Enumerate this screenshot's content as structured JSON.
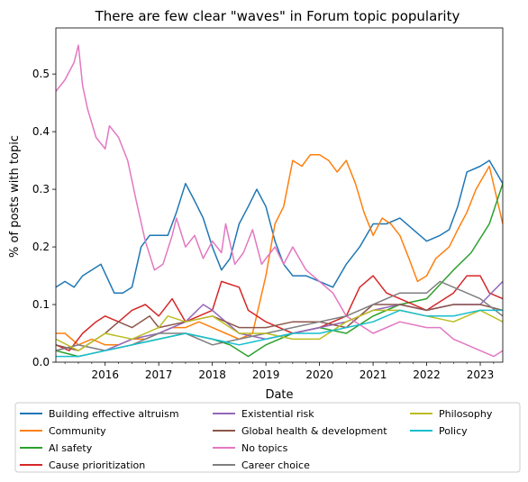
{
  "chart_data": {
    "type": "line",
    "title": "There are few clear \"waves\" in Forum topic popularity",
    "xlabel": "Date",
    "ylabel": "% of posts with topic",
    "xlim": [
      2015.08,
      2023.42
    ],
    "ylim": [
      0.0,
      0.58
    ],
    "xticks": [
      2016,
      2017,
      2018,
      2019,
      2020,
      2021,
      2022,
      2023
    ],
    "yticks": [
      0.0,
      0.1,
      0.2,
      0.3,
      0.4,
      0.5
    ],
    "ytick_labels": [
      "0.0",
      "0.1",
      "0.2",
      "0.3",
      "0.4",
      "0.5"
    ],
    "grid": false,
    "legend_position": "below",
    "legend_columns": 3,
    "series": [
      {
        "name": "Building effective altruism",
        "color": "#1f77b4",
        "points": [
          [
            2015.08,
            0.13
          ],
          [
            2015.25,
            0.14
          ],
          [
            2015.42,
            0.13
          ],
          [
            2015.58,
            0.15
          ],
          [
            2015.75,
            0.16
          ],
          [
            2015.92,
            0.17
          ],
          [
            2016.17,
            0.12
          ],
          [
            2016.33,
            0.12
          ],
          [
            2016.5,
            0.13
          ],
          [
            2016.67,
            0.2
          ],
          [
            2016.83,
            0.22
          ],
          [
            2017.0,
            0.22
          ],
          [
            2017.17,
            0.22
          ],
          [
            2017.33,
            0.26
          ],
          [
            2017.5,
            0.31
          ],
          [
            2017.67,
            0.28
          ],
          [
            2017.83,
            0.25
          ],
          [
            2018.0,
            0.2
          ],
          [
            2018.17,
            0.16
          ],
          [
            2018.33,
            0.18
          ],
          [
            2018.5,
            0.24
          ],
          [
            2018.67,
            0.27
          ],
          [
            2018.83,
            0.3
          ],
          [
            2019.0,
            0.27
          ],
          [
            2019.17,
            0.21
          ],
          [
            2019.33,
            0.17
          ],
          [
            2019.5,
            0.15
          ],
          [
            2019.75,
            0.15
          ],
          [
            2020.0,
            0.14
          ],
          [
            2020.25,
            0.13
          ],
          [
            2020.5,
            0.17
          ],
          [
            2020.75,
            0.2
          ],
          [
            2021.0,
            0.24
          ],
          [
            2021.25,
            0.24
          ],
          [
            2021.5,
            0.25
          ],
          [
            2021.75,
            0.23
          ],
          [
            2022.0,
            0.21
          ],
          [
            2022.25,
            0.22
          ],
          [
            2022.42,
            0.23
          ],
          [
            2022.58,
            0.27
          ],
          [
            2022.75,
            0.33
          ],
          [
            2023.0,
            0.34
          ],
          [
            2023.17,
            0.35
          ],
          [
            2023.42,
            0.31
          ]
        ]
      },
      {
        "name": "Community",
        "color": "#ff7f0e",
        "points": [
          [
            2015.08,
            0.05
          ],
          [
            2015.25,
            0.05
          ],
          [
            2015.5,
            0.03
          ],
          [
            2015.75,
            0.04
          ],
          [
            2016.0,
            0.03
          ],
          [
            2016.25,
            0.03
          ],
          [
            2016.5,
            0.04
          ],
          [
            2016.75,
            0.04
          ],
          [
            2017.0,
            0.05
          ],
          [
            2017.25,
            0.06
          ],
          [
            2017.5,
            0.06
          ],
          [
            2017.75,
            0.07
          ],
          [
            2018.0,
            0.06
          ],
          [
            2018.25,
            0.05
          ],
          [
            2018.5,
            0.04
          ],
          [
            2018.75,
            0.05
          ],
          [
            2019.0,
            0.15
          ],
          [
            2019.17,
            0.24
          ],
          [
            2019.33,
            0.27
          ],
          [
            2019.5,
            0.35
          ],
          [
            2019.67,
            0.34
          ],
          [
            2019.83,
            0.36
          ],
          [
            2020.0,
            0.36
          ],
          [
            2020.17,
            0.35
          ],
          [
            2020.33,
            0.33
          ],
          [
            2020.5,
            0.35
          ],
          [
            2020.67,
            0.31
          ],
          [
            2020.83,
            0.26
          ],
          [
            2021.0,
            0.22
          ],
          [
            2021.17,
            0.25
          ],
          [
            2021.33,
            0.24
          ],
          [
            2021.5,
            0.22
          ],
          [
            2021.67,
            0.18
          ],
          [
            2021.83,
            0.14
          ],
          [
            2022.0,
            0.15
          ],
          [
            2022.17,
            0.18
          ],
          [
            2022.42,
            0.2
          ],
          [
            2022.58,
            0.23
          ],
          [
            2022.75,
            0.26
          ],
          [
            2022.92,
            0.3
          ],
          [
            2023.17,
            0.34
          ],
          [
            2023.42,
            0.24
          ]
        ]
      },
      {
        "name": "AI safety",
        "color": "#2ca02c",
        "points": [
          [
            2015.08,
            0.02
          ],
          [
            2015.5,
            0.01
          ],
          [
            2016.0,
            0.02
          ],
          [
            2016.5,
            0.03
          ],
          [
            2017.0,
            0.04
          ],
          [
            2017.5,
            0.05
          ],
          [
            2018.0,
            0.04
          ],
          [
            2018.33,
            0.03
          ],
          [
            2018.67,
            0.01
          ],
          [
            2019.0,
            0.03
          ],
          [
            2019.5,
            0.05
          ],
          [
            2020.0,
            0.06
          ],
          [
            2020.5,
            0.05
          ],
          [
            2021.0,
            0.08
          ],
          [
            2021.5,
            0.1
          ],
          [
            2022.0,
            0.11
          ],
          [
            2022.5,
            0.16
          ],
          [
            2022.83,
            0.19
          ],
          [
            2023.17,
            0.24
          ],
          [
            2023.42,
            0.31
          ]
        ]
      },
      {
        "name": "Cause prioritization",
        "color": "#d62728",
        "points": [
          [
            2015.08,
            0.03
          ],
          [
            2015.33,
            0.02
          ],
          [
            2015.58,
            0.05
          ],
          [
            2015.83,
            0.07
          ],
          [
            2016.0,
            0.08
          ],
          [
            2016.25,
            0.07
          ],
          [
            2016.5,
            0.09
          ],
          [
            2016.75,
            0.1
          ],
          [
            2017.0,
            0.08
          ],
          [
            2017.25,
            0.11
          ],
          [
            2017.5,
            0.07
          ],
          [
            2017.75,
            0.08
          ],
          [
            2018.0,
            0.09
          ],
          [
            2018.17,
            0.14
          ],
          [
            2018.5,
            0.13
          ],
          [
            2018.67,
            0.09
          ],
          [
            2019.0,
            0.07
          ],
          [
            2019.5,
            0.05
          ],
          [
            2020.0,
            0.06
          ],
          [
            2020.5,
            0.08
          ],
          [
            2020.75,
            0.13
          ],
          [
            2021.0,
            0.15
          ],
          [
            2021.25,
            0.12
          ],
          [
            2021.5,
            0.11
          ],
          [
            2022.0,
            0.09
          ],
          [
            2022.5,
            0.12
          ],
          [
            2022.75,
            0.15
          ],
          [
            2023.0,
            0.15
          ],
          [
            2023.17,
            0.12
          ],
          [
            2023.42,
            0.11
          ]
        ]
      },
      {
        "name": "Existential risk",
        "color": "#9467bd",
        "points": [
          [
            2015.08,
            0.02
          ],
          [
            2015.5,
            0.03
          ],
          [
            2016.0,
            0.02
          ],
          [
            2016.5,
            0.04
          ],
          [
            2017.0,
            0.05
          ],
          [
            2017.5,
            0.07
          ],
          [
            2017.83,
            0.1
          ],
          [
            2018.0,
            0.09
          ],
          [
            2018.5,
            0.05
          ],
          [
            2019.0,
            0.04
          ],
          [
            2019.5,
            0.05
          ],
          [
            2020.0,
            0.06
          ],
          [
            2020.5,
            0.07
          ],
          [
            2021.0,
            0.09
          ],
          [
            2021.5,
            0.1
          ],
          [
            2022.0,
            0.09
          ],
          [
            2022.5,
            0.1
          ],
          [
            2023.0,
            0.1
          ],
          [
            2023.42,
            0.14
          ]
        ]
      },
      {
        "name": "Global health & development",
        "color": "#8c564b",
        "points": [
          [
            2015.08,
            0.03
          ],
          [
            2015.5,
            0.02
          ],
          [
            2016.0,
            0.05
          ],
          [
            2016.25,
            0.07
          ],
          [
            2016.5,
            0.06
          ],
          [
            2016.83,
            0.08
          ],
          [
            2017.0,
            0.06
          ],
          [
            2017.5,
            0.07
          ],
          [
            2018.0,
            0.08
          ],
          [
            2018.5,
            0.06
          ],
          [
            2019.0,
            0.06
          ],
          [
            2019.5,
            0.07
          ],
          [
            2020.0,
            0.07
          ],
          [
            2020.5,
            0.06
          ],
          [
            2021.0,
            0.1
          ],
          [
            2021.5,
            0.1
          ],
          [
            2022.0,
            0.09
          ],
          [
            2022.5,
            0.1
          ],
          [
            2023.0,
            0.1
          ],
          [
            2023.42,
            0.09
          ]
        ]
      },
      {
        "name": "No topics",
        "color": "#e377c2",
        "points": [
          [
            2015.08,
            0.47
          ],
          [
            2015.25,
            0.49
          ],
          [
            2015.42,
            0.52
          ],
          [
            2015.5,
            0.55
          ],
          [
            2015.58,
            0.48
          ],
          [
            2015.67,
            0.44
          ],
          [
            2015.83,
            0.39
          ],
          [
            2016.0,
            0.37
          ],
          [
            2016.08,
            0.41
          ],
          [
            2016.25,
            0.39
          ],
          [
            2016.42,
            0.35
          ],
          [
            2016.58,
            0.28
          ],
          [
            2016.75,
            0.21
          ],
          [
            2016.92,
            0.16
          ],
          [
            2017.08,
            0.17
          ],
          [
            2017.25,
            0.22
          ],
          [
            2017.33,
            0.25
          ],
          [
            2017.5,
            0.2
          ],
          [
            2017.67,
            0.22
          ],
          [
            2017.83,
            0.18
          ],
          [
            2018.0,
            0.21
          ],
          [
            2018.17,
            0.19
          ],
          [
            2018.25,
            0.24
          ],
          [
            2018.42,
            0.17
          ],
          [
            2018.58,
            0.19
          ],
          [
            2018.75,
            0.23
          ],
          [
            2018.92,
            0.17
          ],
          [
            2019.0,
            0.18
          ],
          [
            2019.17,
            0.2
          ],
          [
            2019.33,
            0.17
          ],
          [
            2019.5,
            0.2
          ],
          [
            2019.75,
            0.16
          ],
          [
            2020.0,
            0.14
          ],
          [
            2020.25,
            0.12
          ],
          [
            2020.5,
            0.08
          ],
          [
            2021.0,
            0.05
          ],
          [
            2021.5,
            0.07
          ],
          [
            2022.0,
            0.06
          ],
          [
            2022.25,
            0.06
          ],
          [
            2022.5,
            0.04
          ],
          [
            2022.75,
            0.03
          ],
          [
            2023.0,
            0.02
          ],
          [
            2023.25,
            0.01
          ],
          [
            2023.42,
            0.02
          ]
        ]
      },
      {
        "name": "Career choice",
        "color": "#7f7f7f",
        "points": [
          [
            2015.08,
            0.02
          ],
          [
            2015.5,
            0.03
          ],
          [
            2016.0,
            0.02
          ],
          [
            2016.5,
            0.03
          ],
          [
            2017.0,
            0.05
          ],
          [
            2017.5,
            0.05
          ],
          [
            2018.0,
            0.03
          ],
          [
            2018.5,
            0.04
          ],
          [
            2019.0,
            0.05
          ],
          [
            2019.5,
            0.06
          ],
          [
            2020.0,
            0.07
          ],
          [
            2020.5,
            0.08
          ],
          [
            2021.0,
            0.1
          ],
          [
            2021.5,
            0.12
          ],
          [
            2022.0,
            0.12
          ],
          [
            2022.25,
            0.14
          ],
          [
            2022.5,
            0.13
          ],
          [
            2023.0,
            0.11
          ],
          [
            2023.42,
            0.08
          ]
        ]
      },
      {
        "name": "Philosophy",
        "color": "#bcbd22",
        "points": [
          [
            2015.08,
            0.04
          ],
          [
            2015.5,
            0.02
          ],
          [
            2016.0,
            0.05
          ],
          [
            2016.5,
            0.04
          ],
          [
            2017.0,
            0.06
          ],
          [
            2017.17,
            0.08
          ],
          [
            2017.5,
            0.07
          ],
          [
            2018.0,
            0.08
          ],
          [
            2018.5,
            0.05
          ],
          [
            2019.0,
            0.05
          ],
          [
            2019.5,
            0.04
          ],
          [
            2020.0,
            0.04
          ],
          [
            2020.5,
            0.07
          ],
          [
            2021.0,
            0.09
          ],
          [
            2021.5,
            0.09
          ],
          [
            2022.0,
            0.08
          ],
          [
            2022.5,
            0.07
          ],
          [
            2023.0,
            0.09
          ],
          [
            2023.42,
            0.07
          ]
        ]
      },
      {
        "name": "Policy",
        "color": "#17becf",
        "points": [
          [
            2015.08,
            0.01
          ],
          [
            2015.5,
            0.01
          ],
          [
            2016.0,
            0.02
          ],
          [
            2016.5,
            0.03
          ],
          [
            2017.0,
            0.04
          ],
          [
            2017.5,
            0.05
          ],
          [
            2018.0,
            0.04
          ],
          [
            2018.5,
            0.03
          ],
          [
            2019.0,
            0.04
          ],
          [
            2019.5,
            0.05
          ],
          [
            2020.0,
            0.05
          ],
          [
            2020.5,
            0.06
          ],
          [
            2021.0,
            0.07
          ],
          [
            2021.5,
            0.09
          ],
          [
            2022.0,
            0.08
          ],
          [
            2022.5,
            0.08
          ],
          [
            2023.0,
            0.09
          ],
          [
            2023.42,
            0.09
          ]
        ]
      }
    ]
  }
}
